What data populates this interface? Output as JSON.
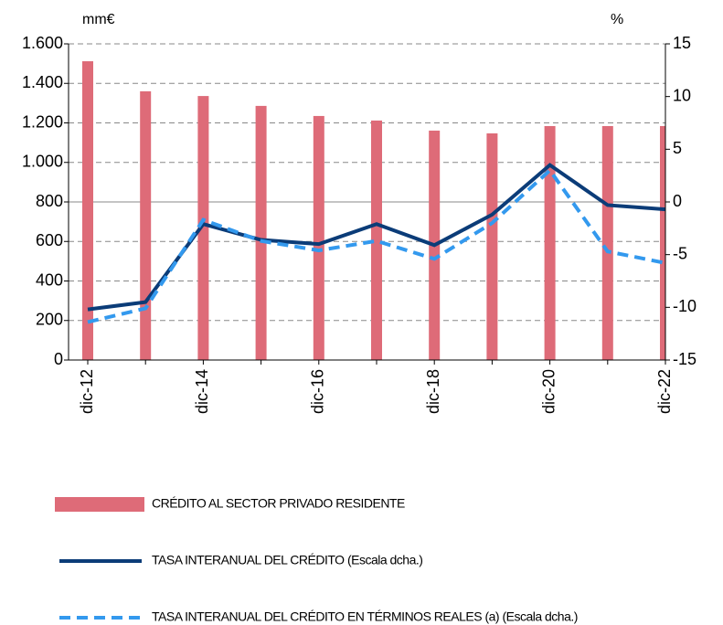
{
  "chart_data": {
    "type": "bar-line",
    "y_unit": "mm€",
    "y2_unit": "%",
    "categories": [
      "dic-12",
      null,
      "dic-14",
      null,
      "dic-16",
      null,
      "dic-18",
      null,
      "dic-20",
      null,
      "dic-22"
    ],
    "series": [
      {
        "name": "CRÉDITO AL SECTOR PRIVADO RESIDENTE",
        "type": "bar",
        "color": "#de6b78",
        "values": [
          1512,
          1360,
          1336,
          1286,
          1235,
          1212,
          1161,
          1147,
          1184,
          1184,
          1184
        ]
      },
      {
        "name": "TASA INTERANUAL DEL CRÉDITO (Escala dcha.)",
        "type": "line",
        "axis": "y2",
        "color": "#0b3c78",
        "dash": false,
        "values": [
          -10.2,
          -9.5,
          -2.1,
          -3.6,
          -4.0,
          -2.1,
          -4.1,
          -1.2,
          3.5,
          -0.3,
          -0.7
        ]
      },
      {
        "name": "TASA INTERANUAL DEL CRÉDITO EN TÉRMINOS REALES (a) (Escala dcha.)",
        "type": "line",
        "axis": "y2",
        "color": "#3399ee",
        "dash": true,
        "values": [
          -11.4,
          -10.1,
          -1.7,
          -3.7,
          -4.6,
          -3.7,
          -5.4,
          -2.0,
          3.0,
          -4.7,
          -5.8
        ]
      }
    ],
    "ylim": [
      0,
      1600
    ],
    "yticks": [
      0,
      200,
      400,
      600,
      800,
      {
        "value": 1000,
        "label": "1.000"
      },
      {
        "value": 1200,
        "label": "1.200"
      },
      {
        "value": 1400,
        "label": "1.400"
      },
      {
        "value": 1600,
        "label": "1.600"
      }
    ],
    "y2lim": [
      -15,
      15
    ],
    "y2ticks": [
      -15,
      -10,
      -5,
      0,
      5,
      10,
      15
    ],
    "grid": true
  }
}
